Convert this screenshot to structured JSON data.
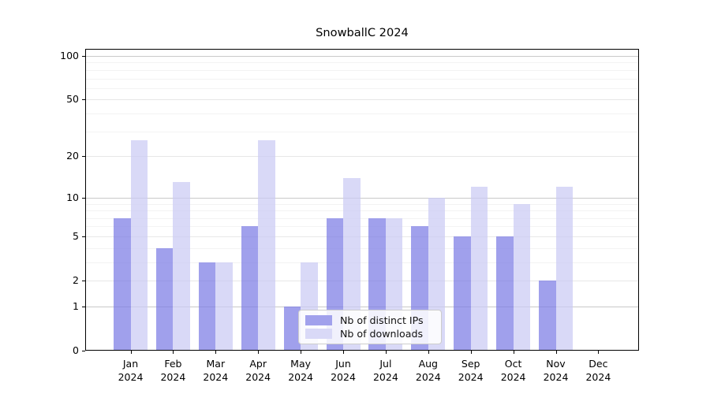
{
  "title": "SnowballC 2024",
  "legend": {
    "items": [
      {
        "label": "Nb of distinct IPs",
        "swatch_color": "#a1a1ec"
      },
      {
        "label": "Nb of downloads",
        "swatch_color": "#d9d9f7"
      }
    ]
  },
  "chart_data": {
    "type": "bar",
    "title": "SnowballC 2024",
    "categories": [
      "Jan",
      "Feb",
      "Mar",
      "Apr",
      "May",
      "Jun",
      "Jul",
      "Aug",
      "Sep",
      "Oct",
      "Nov",
      "Dec"
    ],
    "category_year": "2024",
    "series": [
      {
        "name": "Nb of distinct IPs",
        "color": "#7c7ce5",
        "alpha": 0.72,
        "rendered_color": "#a1a1ec",
        "values": [
          7,
          4,
          3,
          6,
          1,
          7,
          7,
          6,
          5,
          5,
          2,
          0
        ]
      },
      {
        "name": "Nb of downloads",
        "color": "#cacaf4",
        "alpha": 0.72,
        "rendered_color": "#d9d9f7",
        "values": [
          26,
          13,
          3,
          26,
          3,
          14,
          7,
          10,
          12,
          9,
          12,
          0
        ]
      }
    ],
    "xlabel": "",
    "ylabel": "",
    "y_scale": "log1p",
    "y_ticks": [
      0,
      1,
      2,
      5,
      10,
      20,
      50,
      100
    ],
    "y_minor_ticks": [
      3,
      4,
      6,
      7,
      8,
      9,
      30,
      40,
      60,
      70,
      80,
      90
    ],
    "ylim": [
      0,
      110
    ],
    "grid": "on",
    "legend_position": "lower-center",
    "gridline_colors": {
      "power": "#c9c9c9",
      "major": "#e7e7e7",
      "minor": "#f3f3f3"
    }
  }
}
